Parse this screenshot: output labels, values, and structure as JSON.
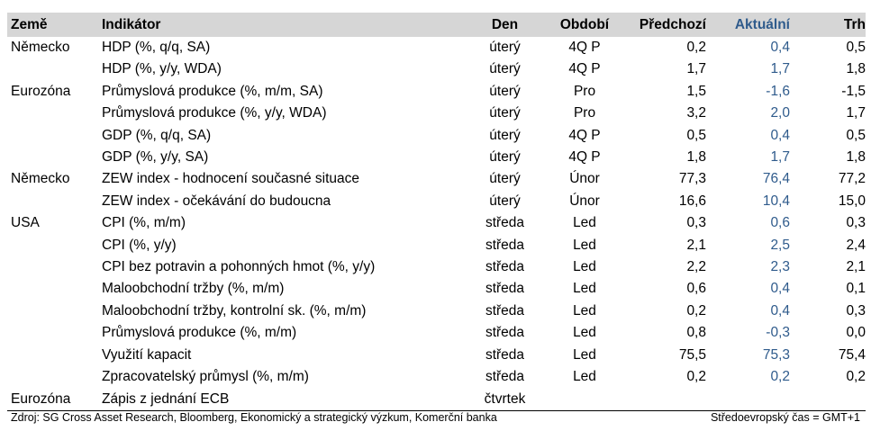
{
  "header": {
    "zeme": "Země",
    "indikator": "Indikátor",
    "den": "Den",
    "obdobi": "Období",
    "predchozi": "Předchozí",
    "aktualni": "Aktuální",
    "trh": "Trh"
  },
  "rows": [
    {
      "zeme": "Německo",
      "indikator": "HDP (%, q/q, SA)",
      "den": "úterý",
      "obdobi": "4Q P",
      "predchozi": "0,2",
      "aktualni": "0,4",
      "trh": "0,5"
    },
    {
      "zeme": "",
      "indikator": "HDP (%, y/y, WDA)",
      "den": "úterý",
      "obdobi": "4Q P",
      "predchozi": "1,7",
      "aktualni": "1,7",
      "trh": "1,8"
    },
    {
      "zeme": "Eurozóna",
      "indikator": "Průmyslová produkce (%, m/m, SA)",
      "den": "úterý",
      "obdobi": "Pro",
      "predchozi": "1,5",
      "aktualni": "-1,6",
      "trh": "-1,5"
    },
    {
      "zeme": "",
      "indikator": "Průmyslová produkce (%, y/y, WDA)",
      "den": "úterý",
      "obdobi": "Pro",
      "predchozi": "3,2",
      "aktualni": "2,0",
      "trh": "1,7"
    },
    {
      "zeme": "",
      "indikator": "GDP (%, q/q, SA)",
      "den": "úterý",
      "obdobi": "4Q P",
      "predchozi": "0,5",
      "aktualni": "0,4",
      "trh": "0,5"
    },
    {
      "zeme": "",
      "indikator": "GDP (%, y/y, SA)",
      "den": "úterý",
      "obdobi": "4Q P",
      "predchozi": "1,8",
      "aktualni": "1,7",
      "trh": "1,8"
    },
    {
      "zeme": "Německo",
      "indikator": "ZEW index - hodnocení současné situace",
      "den": "úterý",
      "obdobi": "Únor",
      "predchozi": "77,3",
      "aktualni": "76,4",
      "trh": "77,2"
    },
    {
      "zeme": "",
      "indikator": "ZEW index - očekávání do budoucna",
      "den": "úterý",
      "obdobi": "Únor",
      "predchozi": "16,6",
      "aktualni": "10,4",
      "trh": "15,0"
    },
    {
      "zeme": "USA",
      "indikator": "CPI (%, m/m)",
      "den": "středa",
      "obdobi": "Led",
      "predchozi": "0,3",
      "aktualni": "0,6",
      "trh": "0,3"
    },
    {
      "zeme": "",
      "indikator": "CPI (%, y/y)",
      "den": "středa",
      "obdobi": "Led",
      "predchozi": "2,1",
      "aktualni": "2,5",
      "trh": "2,4"
    },
    {
      "zeme": "",
      "indikator": "CPI bez potravin a pohonných hmot (%, y/y)",
      "den": "středa",
      "obdobi": "Led",
      "predchozi": "2,2",
      "aktualni": "2,3",
      "trh": "2,1"
    },
    {
      "zeme": "",
      "indikator": "Maloobchodní tržby (%, m/m)",
      "den": "středa",
      "obdobi": "Led",
      "predchozi": "0,6",
      "aktualni": "0,4",
      "trh": "0,1"
    },
    {
      "zeme": "",
      "indikator": "Maloobchodní tržby, kontrolní sk. (%, m/m)",
      "den": "středa",
      "obdobi": "Led",
      "predchozi": "0,2",
      "aktualni": "0,4",
      "trh": "0,3"
    },
    {
      "zeme": "",
      "indikator": "Průmyslová produkce (%, m/m)",
      "den": "středa",
      "obdobi": "Led",
      "predchozi": "0,8",
      "aktualni": "-0,3",
      "trh": "0,0"
    },
    {
      "zeme": "",
      "indikator": "Využití kapacit",
      "den": "středa",
      "obdobi": "Led",
      "predchozi": "75,5",
      "aktualni": "75,3",
      "trh": "75,4"
    },
    {
      "zeme": "",
      "indikator": "Zpracovatelský průmysl (%, m/m)",
      "den": "středa",
      "obdobi": "Led",
      "predchozi": "0,2",
      "aktualni": "0,2",
      "trh": "0,2"
    },
    {
      "zeme": "Eurozóna",
      "indikator": "Zápis z jednání ECB",
      "den": "čtvrtek",
      "obdobi": "",
      "predchozi": "",
      "aktualni": "",
      "trh": ""
    }
  ],
  "footer": {
    "source": "Zdroj: SG Cross Asset Research, Bloomberg, Ekonomický a strategický výzkum, Komerční banka",
    "timezone": "Středoevropský čas = GMT+1"
  },
  "colors": {
    "header_bg": "#d6d6d6",
    "aktualni": "#2f5b8c"
  }
}
